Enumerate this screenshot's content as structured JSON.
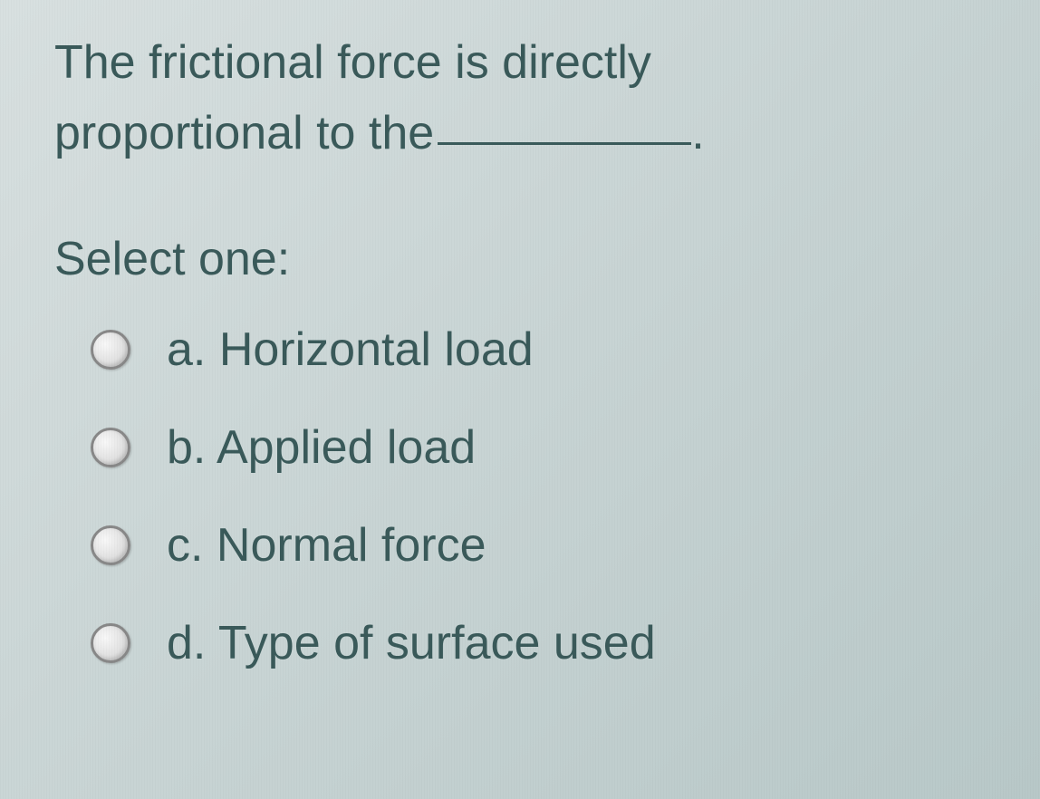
{
  "question": {
    "line1": "The frictional force is directly",
    "line2_prefix": "proportional to the",
    "line2_suffix": "."
  },
  "prompt": "Select one:",
  "options": [
    {
      "letter": "a.",
      "text": "Horizontal load",
      "selected": false
    },
    {
      "letter": "b.",
      "text": "Applied load",
      "selected": false
    },
    {
      "letter": "c.",
      "text": "Normal force",
      "selected": false
    },
    {
      "letter": "d.",
      "text": "Type of surface used",
      "selected": false
    }
  ],
  "colors": {
    "text": "#3a5a5a",
    "background_start": "#d8e0e0",
    "background_end": "#b8c8c8",
    "radio_border": "#888888"
  },
  "typography": {
    "font_family": "Arial",
    "question_fontsize": 52,
    "option_fontsize": 52
  }
}
